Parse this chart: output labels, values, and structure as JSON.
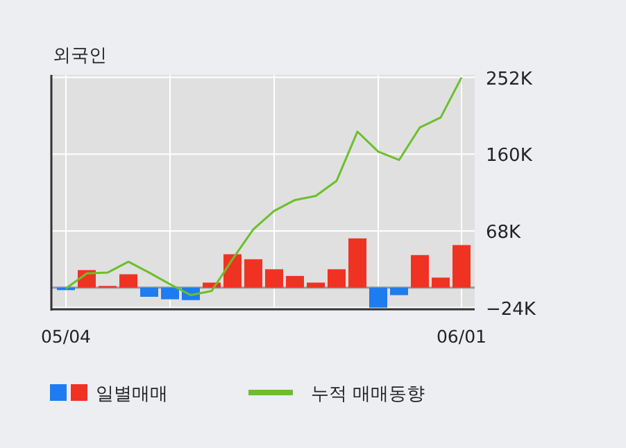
{
  "chart_data": {
    "type": "bar",
    "title": "외국인",
    "categories": [
      "05/04",
      null,
      null,
      null,
      null,
      null,
      null,
      null,
      null,
      null,
      null,
      null,
      null,
      null,
      null,
      null,
      null,
      null,
      null,
      "06/01"
    ],
    "series": [
      {
        "name": "일별매매",
        "colors": [
          "#1e7cf0",
          "#f03222",
          "#f03222",
          "#f03222",
          "#1e7cf0",
          "#1e7cf0",
          "#1e7cf0",
          "#f03222",
          "#f03222",
          "#f03222",
          "#f03222",
          "#f03222",
          "#f03222",
          "#f03222",
          "#f03222",
          "#1e7cf0",
          "#1e7cf0",
          "#f03222",
          "#f03222",
          "#f03222"
        ],
        "values": [
          -3,
          21,
          2,
          16,
          -11,
          -14,
          -15,
          6,
          40,
          34,
          22,
          14,
          6,
          22,
          59,
          -24,
          -9,
          39,
          12,
          51
        ]
      },
      {
        "name": "누적 매매동향",
        "type": "line",
        "color": "#6cbf2a",
        "values": [
          -1,
          17,
          18,
          31,
          18,
          4,
          -9,
          -4,
          34,
          70,
          92,
          105,
          110,
          128,
          187,
          163,
          153,
          192,
          204,
          252
        ]
      }
    ],
    "ylim": [
      -26,
      255
    ],
    "yticks": [
      {
        "value": 252,
        "label": "252K"
      },
      {
        "value": 160,
        "label": "160K"
      },
      {
        "value": 68,
        "label": "68K"
      },
      {
        "value": -24,
        "label": "−24K"
      }
    ],
    "ref_lines": [
      {
        "axis": "y",
        "value": 0,
        "color": "#999999"
      }
    ],
    "grid": true,
    "legend": "bottom"
  }
}
